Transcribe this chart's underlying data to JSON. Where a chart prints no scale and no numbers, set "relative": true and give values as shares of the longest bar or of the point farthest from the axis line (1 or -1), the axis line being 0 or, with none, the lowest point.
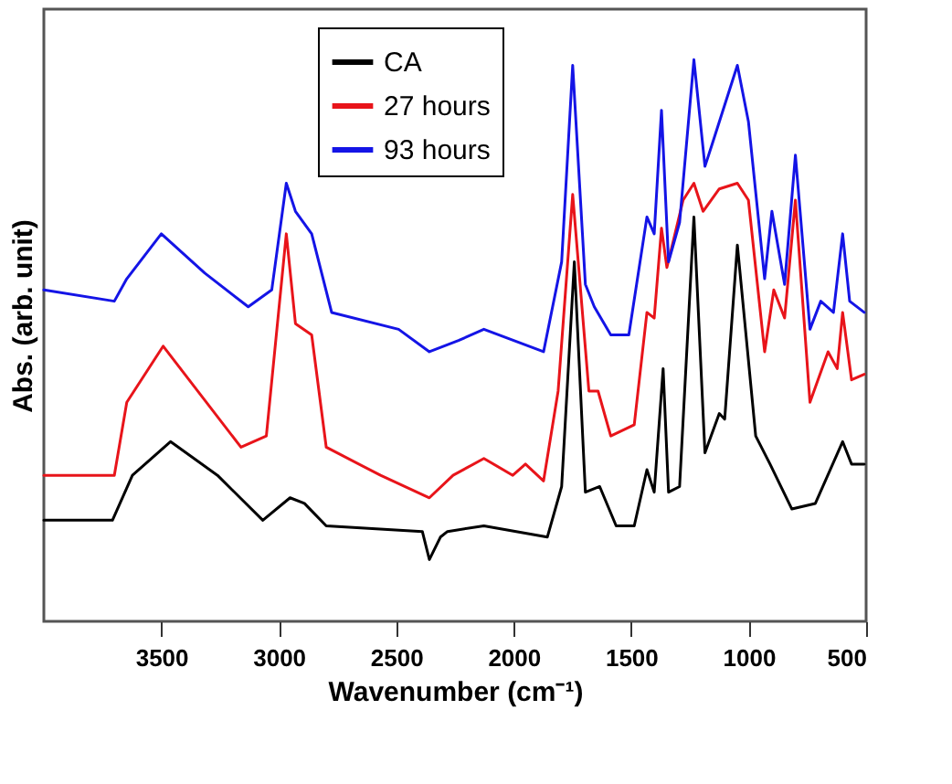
{
  "chart_data": {
    "type": "line",
    "xlabel": "Wavenumber (cm⁻¹)",
    "ylabel": "Abs. (arb. unit)",
    "relative": true,
    "xlim": [
      4000,
      500
    ],
    "xticks": [
      3500,
      3000,
      2500,
      2000,
      1500,
      1000,
      500
    ],
    "legend": "top",
    "grid": false,
    "line_style": "solid",
    "series": [
      {
        "name": "CA",
        "color": "#000000",
        "x": [
          4000,
          3708,
          3623,
          3461,
          3261,
          3068,
          2952,
          2891,
          2798,
          2389,
          2359,
          2312,
          2282,
          2127,
          1857,
          1796,
          1742,
          1695,
          1634,
          1564,
          1487,
          1433,
          1402,
          1364,
          1341,
          1294,
          1233,
          1186,
          1125,
          1102,
          1048,
          970,
          909,
          816,
          716,
          600,
          562,
          508
        ],
        "values": [
          0.18,
          0.18,
          0.26,
          0.32,
          0.26,
          0.18,
          0.22,
          0.21,
          0.17,
          0.16,
          0.11,
          0.15,
          0.16,
          0.17,
          0.15,
          0.24,
          0.64,
          0.23,
          0.24,
          0.17,
          0.17,
          0.27,
          0.23,
          0.45,
          0.23,
          0.24,
          0.72,
          0.3,
          0.37,
          0.36,
          0.67,
          0.33,
          0.28,
          0.2,
          0.21,
          0.32,
          0.28,
          0.28
        ]
      },
      {
        "name": "27 hours",
        "color": "#e8141a",
        "x": [
          4000,
          3700,
          3647,
          3492,
          3161,
          3053,
          2968,
          2929,
          2860,
          2798,
          2567,
          2359,
          2258,
          2127,
          2004,
          1950,
          1873,
          1811,
          1749,
          1680,
          1641,
          1587,
          1487,
          1433,
          1402,
          1371,
          1348,
          1279,
          1233,
          1194,
          1125,
          1048,
          1001,
          932,
          893,
          847,
          801,
          739,
          662,
          623,
          600,
          562,
          508
        ],
        "values": [
          0.26,
          0.26,
          0.39,
          0.49,
          0.31,
          0.33,
          0.69,
          0.53,
          0.51,
          0.31,
          0.26,
          0.22,
          0.26,
          0.29,
          0.26,
          0.28,
          0.25,
          0.41,
          0.76,
          0.41,
          0.41,
          0.33,
          0.35,
          0.55,
          0.54,
          0.7,
          0.63,
          0.75,
          0.78,
          0.73,
          0.77,
          0.78,
          0.75,
          0.48,
          0.59,
          0.54,
          0.75,
          0.39,
          0.48,
          0.45,
          0.55,
          0.43,
          0.44
        ]
      },
      {
        "name": "93 hours",
        "color": "#1414e6",
        "x": [
          4000,
          3700,
          3647,
          3500,
          3315,
          3130,
          3030,
          2968,
          2929,
          2860,
          2775,
          2490,
          2359,
          2235,
          2127,
          1873,
          1796,
          1749,
          1695,
          1657,
          1587,
          1510,
          1433,
          1402,
          1371,
          1341,
          1294,
          1233,
          1186,
          1155,
          1048,
          1001,
          932,
          901,
          847,
          801,
          739,
          693,
          639,
          600,
          570,
          508
        ],
        "values": [
          0.59,
          0.57,
          0.61,
          0.69,
          0.62,
          0.56,
          0.59,
          0.78,
          0.73,
          0.69,
          0.55,
          0.52,
          0.48,
          0.5,
          0.52,
          0.48,
          0.64,
          0.99,
          0.6,
          0.56,
          0.51,
          0.51,
          0.72,
          0.69,
          0.91,
          0.64,
          0.71,
          1,
          0.81,
          0.85,
          0.99,
          0.89,
          0.61,
          0.73,
          0.6,
          0.83,
          0.52,
          0.57,
          0.55,
          0.69,
          0.57,
          0.55
        ]
      }
    ]
  }
}
